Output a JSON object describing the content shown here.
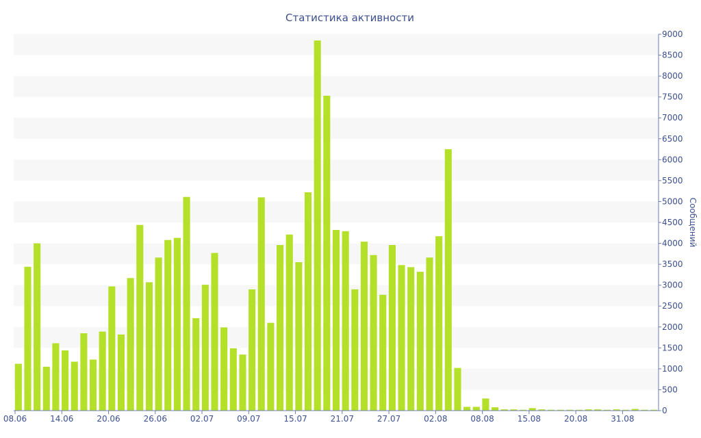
{
  "chart_data": {
    "type": "bar",
    "title": "Статистика активности",
    "ylabel": "Сообщений",
    "xlabel": "",
    "ylim": [
      0,
      9000
    ],
    "y_ticks": [
      0,
      500,
      1000,
      1500,
      2000,
      2500,
      3000,
      3500,
      4000,
      4500,
      5000,
      5500,
      6000,
      6500,
      7000,
      7500,
      8000,
      8500,
      9000
    ],
    "x_tick_labels": [
      {
        "label": "08.06",
        "index": 0
      },
      {
        "label": "14.06",
        "index": 5
      },
      {
        "label": "20.06",
        "index": 10
      },
      {
        "label": "26.06",
        "index": 15
      },
      {
        "label": "02.07",
        "index": 20
      },
      {
        "label": "09.07",
        "index": 25
      },
      {
        "label": "15.07",
        "index": 30
      },
      {
        "label": "21.07",
        "index": 35
      },
      {
        "label": "27.07",
        "index": 40
      },
      {
        "label": "02.08",
        "index": 45
      },
      {
        "label": "08.08",
        "index": 50
      },
      {
        "label": "15.08",
        "index": 55
      },
      {
        "label": "20.08",
        "index": 60
      },
      {
        "label": "31.08",
        "index": 65
      }
    ],
    "values": [
      1120,
      3440,
      4000,
      1050,
      1610,
      1440,
      1170,
      1850,
      1220,
      1890,
      2970,
      1820,
      3170,
      4440,
      3070,
      3660,
      4080,
      4130,
      5110,
      2210,
      3010,
      3770,
      1990,
      1490,
      1340,
      2900,
      5100,
      2100,
      3960,
      4210,
      3550,
      5220,
      8850,
      7530,
      4320,
      4290,
      2900,
      4040,
      3720,
      2770,
      3960,
      3480,
      3430,
      3320,
      3660,
      4170,
      6250,
      1020,
      90,
      90,
      290,
      80,
      30,
      30,
      20,
      60,
      30,
      20,
      20,
      20,
      20,
      30,
      30,
      20,
      30,
      20,
      40,
      20,
      20
    ],
    "grid": true,
    "bar_color": "#b5e02a",
    "band_color": "#f7f7f7",
    "text_color": "#3c4f8f",
    "axis_color": "#6b7bb3"
  }
}
